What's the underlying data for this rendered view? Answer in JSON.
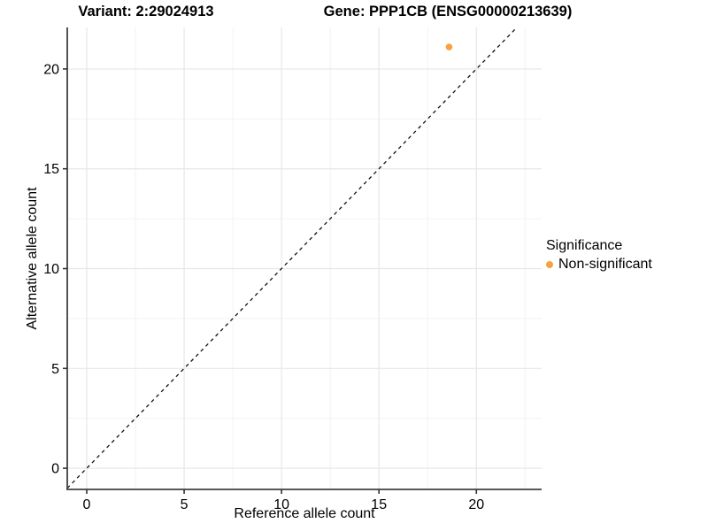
{
  "chart_data": {
    "type": "scatter",
    "titles": {
      "variant": "Variant: 2:29024913",
      "gene": "Gene: PPP1CB (ENSG00000213639)"
    },
    "xlabel": "Reference allele count",
    "ylabel": "Alternative allele count",
    "xlim": [
      -1,
      23.35
    ],
    "ylim": [
      -1.06,
      22.08
    ],
    "xticks": [
      0,
      5,
      10,
      15,
      20
    ],
    "yticks": [
      0,
      5,
      10,
      15,
      20
    ],
    "xminor": [
      2.5,
      7.5,
      12.5,
      17.5,
      22.5
    ],
    "yminor": [
      2.5,
      7.5,
      12.5,
      17.5
    ],
    "grid": true,
    "legend_position": "right",
    "identity_line": {
      "slope": 1,
      "intercept": 0,
      "style": "dashed",
      "color": "#111111"
    },
    "series": [
      {
        "name": "Non-significant",
        "color": "#F9A23D",
        "point_radius": 3.8,
        "points": [
          [
            18.6,
            21.1
          ]
        ]
      }
    ],
    "legend": {
      "title": "Significance",
      "items": [
        {
          "label": "Non-significant",
          "color": "#F9A23D"
        }
      ]
    },
    "colors": {
      "axis_line": "#404040",
      "tick": "#333333",
      "grid_major": "#e7e7e7",
      "grid_minor": "#f2f2f2",
      "text": "#000000"
    }
  }
}
